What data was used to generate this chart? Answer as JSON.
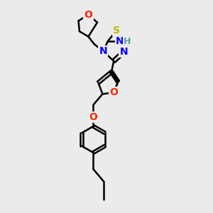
{
  "background_color": "#ebebeb",
  "atom_colors": {
    "N": "#0000FF",
    "O": "#FF2200",
    "S": "#BBBB00",
    "C": "#000000",
    "H": "#5F9EA0"
  },
  "bond_color": "#000000",
  "bond_width": 1.8,
  "font_size_atom": 10,
  "title": ""
}
